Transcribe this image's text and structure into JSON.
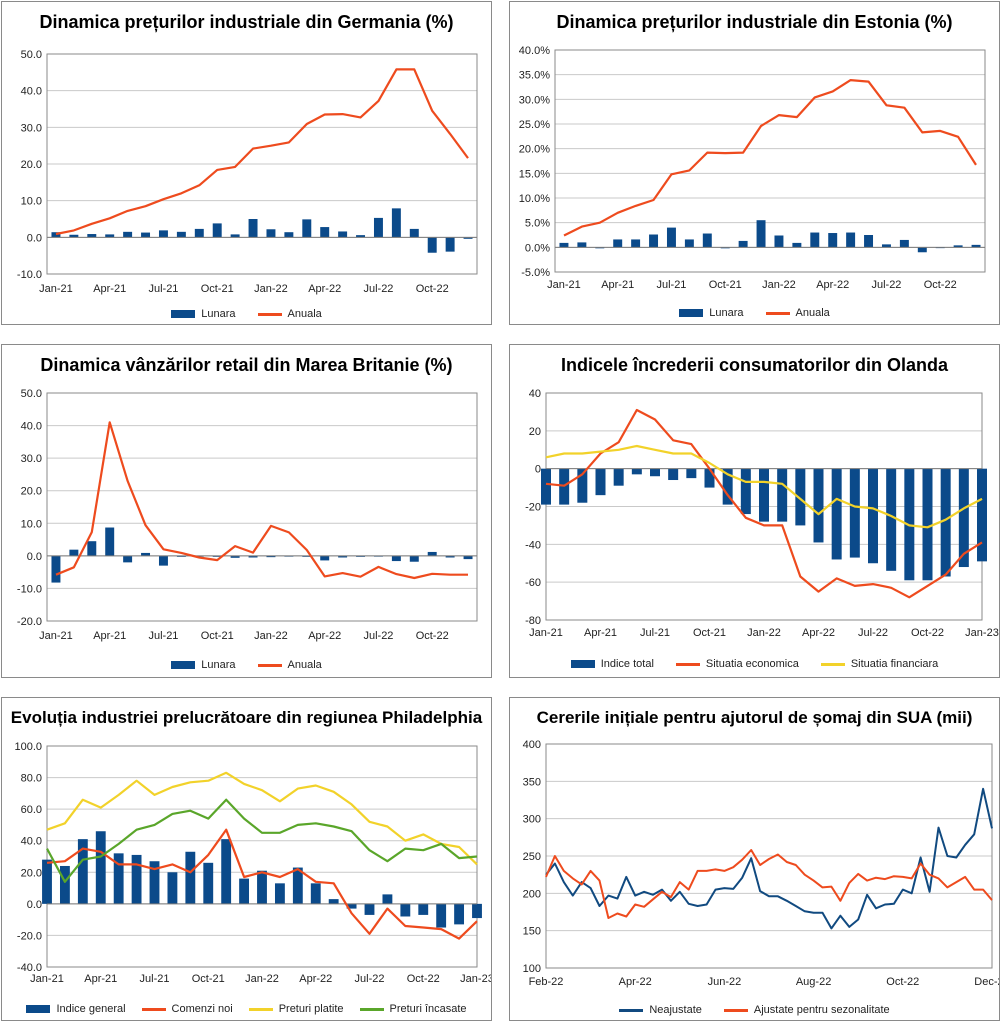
{
  "colors": {
    "bar": "#0b4a8a",
    "orange": "#ee4b1e",
    "yellow": "#f2d22a",
    "green": "#5aa62a",
    "navy": "#114a80",
    "grid": "#c9c9c9"
  },
  "chart_data": [
    {
      "id": "germany",
      "type": "bar+line",
      "title": "Dinamica prețurilor industriale din Germania (%)",
      "x": [
        "Jan-21",
        "Feb-21",
        "Mar-21",
        "Apr-21",
        "May-21",
        "Jun-21",
        "Jul-21",
        "Aug-21",
        "Sep-21",
        "Oct-21",
        "Nov-21",
        "Dec-21",
        "Jan-22",
        "Feb-22",
        "Mar-22",
        "Apr-22",
        "May-22",
        "Jun-22",
        "Jul-22",
        "Aug-22",
        "Sep-22",
        "Oct-22",
        "Nov-22",
        "Dec-22"
      ],
      "xtick_labels": [
        "Jan-21",
        "Apr-21",
        "Jul-21",
        "Oct-21",
        "Jan-22",
        "Apr-22",
        "Jul-22",
        "Oct-22"
      ],
      "ylim": [
        -10,
        50
      ],
      "yticks": [
        "-10.0",
        "0.0",
        "10.0",
        "20.0",
        "30.0",
        "40.0",
        "50.0"
      ],
      "series": [
        {
          "name": "Lunara",
          "kind": "bar",
          "values": [
            1.4,
            0.7,
            0.9,
            0.8,
            1.5,
            1.3,
            1.9,
            1.5,
            2.3,
            3.8,
            0.8,
            5.0,
            2.2,
            1.4,
            4.9,
            2.8,
            1.6,
            0.6,
            5.3,
            7.9,
            2.3,
            -4.2,
            -3.9,
            -0.4
          ]
        },
        {
          "name": "Anuala",
          "kind": "line",
          "values": [
            0.9,
            1.9,
            3.7,
            5.2,
            7.2,
            8.5,
            10.4,
            12.0,
            14.2,
            18.4,
            19.2,
            24.2,
            25.0,
            25.9,
            30.9,
            33.5,
            33.6,
            32.7,
            37.2,
            45.8,
            45.8,
            34.5,
            28.2,
            21.6
          ]
        }
      ]
    },
    {
      "id": "estonia",
      "type": "bar+line",
      "title": "Dinamica prețurilor industriale din Estonia (%)",
      "x": [
        "Jan-21",
        "Feb-21",
        "Mar-21",
        "Apr-21",
        "May-21",
        "Jun-21",
        "Jul-21",
        "Aug-21",
        "Sep-21",
        "Oct-21",
        "Nov-21",
        "Dec-21",
        "Jan-22",
        "Feb-22",
        "Mar-22",
        "Apr-22",
        "May-22",
        "Jun-22",
        "Jul-22",
        "Aug-22",
        "Sep-22",
        "Oct-22",
        "Nov-22",
        "Dec-22"
      ],
      "xtick_labels": [
        "Jan-21",
        "Apr-21",
        "Jul-21",
        "Oct-21",
        "Jan-22",
        "Apr-22",
        "Jul-22",
        "Oct-22"
      ],
      "ylim": [
        -5,
        40
      ],
      "yticks": [
        "-5.0%",
        "0.0%",
        "5.0%",
        "10.0%",
        "15.0%",
        "20.0%",
        "25.0%",
        "30.0%",
        "35.0%",
        "40.0%"
      ],
      "series": [
        {
          "name": "Lunara",
          "kind": "bar",
          "values": [
            0.9,
            1.0,
            -0.2,
            1.6,
            1.6,
            2.6,
            4.0,
            1.6,
            2.8,
            -0.2,
            1.3,
            5.5,
            2.4,
            0.9,
            3.0,
            2.9,
            3.0,
            2.5,
            0.6,
            1.5,
            -1.0,
            -0.1,
            0.4,
            0.5
          ]
        },
        {
          "name": "Anuala",
          "kind": "line",
          "values": [
            2.4,
            4.2,
            5.0,
            7.0,
            8.4,
            9.6,
            14.8,
            15.6,
            19.2,
            19.1,
            19.2,
            24.6,
            26.8,
            26.4,
            30.4,
            31.6,
            33.9,
            33.6,
            28.8,
            28.3,
            23.3,
            23.6,
            22.4,
            16.7
          ]
        }
      ]
    },
    {
      "id": "uk",
      "type": "bar+line",
      "title": "Dinamica vânzărilor retail din Marea Britanie (%)",
      "x": [
        "Jan-21",
        "Feb-21",
        "Mar-21",
        "Apr-21",
        "May-21",
        "Jun-21",
        "Jul-21",
        "Aug-21",
        "Sep-21",
        "Oct-21",
        "Nov-21",
        "Dec-21",
        "Jan-22",
        "Feb-22",
        "Mar-22",
        "Apr-22",
        "May-22",
        "Jun-22",
        "Jul-22",
        "Aug-22",
        "Sep-22",
        "Oct-22",
        "Nov-22",
        "Dec-22"
      ],
      "xtick_labels": [
        "Jan-21",
        "Apr-21",
        "Jul-21",
        "Oct-21",
        "Jan-22",
        "Apr-22",
        "Jul-22",
        "Oct-22"
      ],
      "ylim": [
        -20,
        50
      ],
      "yticks": [
        "-20.0",
        "-10.0",
        "0.0",
        "10.0",
        "20.0",
        "30.0",
        "40.0",
        "50.0"
      ],
      "series": [
        {
          "name": "Lunara",
          "kind": "bar",
          "values": [
            -8.2,
            1.9,
            4.5,
            8.7,
            -2.0,
            0.9,
            -3.0,
            -0.3,
            -0.2,
            -0.3,
            -0.6,
            -0.5,
            -0.4,
            -0.2,
            -0.3,
            -1.4,
            -0.5,
            -0.3,
            -0.1,
            -1.6,
            -1.8,
            1.2,
            -0.5,
            -1.0
          ]
        },
        {
          "name": "Anuala",
          "kind": "line",
          "values": [
            -5.8,
            -3.5,
            7.3,
            41.0,
            23.0,
            9.4,
            2.0,
            0.9,
            -0.5,
            -1.3,
            3.0,
            1.0,
            9.2,
            7.2,
            1.8,
            -6.3,
            -5.3,
            -6.4,
            -3.4,
            -5.6,
            -6.8,
            -5.5,
            -5.8,
            -5.8
          ]
        }
      ]
    },
    {
      "id": "netherlands",
      "type": "bar+line",
      "title": "Indicele încrederii consumatorilor din Olanda",
      "x": [
        "Jan-21",
        "Feb-21",
        "Mar-21",
        "Apr-21",
        "May-21",
        "Jun-21",
        "Jul-21",
        "Aug-21",
        "Sep-21",
        "Oct-21",
        "Nov-21",
        "Dec-21",
        "Jan-22",
        "Feb-22",
        "Mar-22",
        "Apr-22",
        "May-22",
        "Jun-22",
        "Jul-22",
        "Aug-22",
        "Sep-22",
        "Oct-22",
        "Nov-22",
        "Dec-22",
        "Jan-23"
      ],
      "xtick_labels": [
        "Jan-21",
        "Apr-21",
        "Jul-21",
        "Oct-21",
        "Jan-22",
        "Apr-22",
        "Jul-22",
        "Oct-22",
        "Jan-23"
      ],
      "ylim": [
        -80,
        40
      ],
      "yticks": [
        "-80",
        "-60",
        "-40",
        "-20",
        "0",
        "20",
        "40"
      ],
      "series": [
        {
          "name": "Indice total",
          "kind": "bar",
          "values": [
            -19,
            -19,
            -18,
            -14,
            -9,
            -3,
            -4,
            -6,
            -5,
            -10,
            -19,
            -24,
            -28,
            -28,
            -30,
            -39,
            -48,
            -47,
            -50,
            -54,
            -59,
            -59,
            -57,
            -52,
            -49
          ]
        },
        {
          "name": "Situatia economica",
          "kind": "line",
          "values": [
            -8,
            -9,
            -3,
            8,
            14,
            31,
            26,
            15,
            13,
            0,
            -14,
            -26,
            -30,
            -30,
            -57,
            -65,
            -58,
            -62,
            -61,
            -63,
            -68,
            -62,
            -56,
            -45,
            -39
          ]
        },
        {
          "name": "Situatia financiara",
          "kind": "line",
          "values": [
            6,
            8,
            8,
            9,
            10,
            12,
            10,
            8,
            8,
            3,
            -3,
            -7,
            -7,
            -8,
            -16,
            -24,
            -16,
            -20,
            -21,
            -25,
            -30,
            -31,
            -27,
            -21,
            -16
          ]
        }
      ]
    },
    {
      "id": "philadelphia",
      "type": "bar+line",
      "title": "Evoluția industriei prelucrătoare din regiunea Philadelphia",
      "x": [
        "Jan-21",
        "Feb-21",
        "Mar-21",
        "Apr-21",
        "May-21",
        "Jun-21",
        "Jul-21",
        "Aug-21",
        "Sep-21",
        "Oct-21",
        "Nov-21",
        "Dec-21",
        "Jan-22",
        "Feb-22",
        "Mar-22",
        "Apr-22",
        "May-22",
        "Jun-22",
        "Jul-22",
        "Aug-22",
        "Sep-22",
        "Oct-22",
        "Nov-22",
        "Dec-22",
        "Jan-23"
      ],
      "xtick_labels": [
        "Jan-21",
        "Apr-21",
        "Jul-21",
        "Oct-21",
        "Jan-22",
        "Apr-22",
        "Jul-22",
        "Oct-22",
        "Jan-23"
      ],
      "ylim": [
        -40,
        100
      ],
      "yticks": [
        "-40.0",
        "-20.0",
        "0.0",
        "20.0",
        "40.0",
        "60.0",
        "80.0",
        "100.0"
      ],
      "series": [
        {
          "name": "Indice general",
          "kind": "bar",
          "values": [
            28,
            24,
            41,
            46,
            32,
            31,
            27,
            20,
            33,
            26,
            41,
            16,
            21,
            13,
            23,
            13,
            3,
            -3,
            -7,
            6,
            -8,
            -7,
            -15,
            -13,
            -9
          ]
        },
        {
          "name": "Comenzi noi",
          "kind": "line",
          "values": [
            26,
            27,
            35,
            33,
            25,
            25,
            22,
            25,
            20,
            31,
            47,
            17,
            20,
            17,
            22,
            14,
            13,
            -6,
            -19,
            -3,
            -14,
            -15,
            -16,
            -22,
            -11
          ]
        },
        {
          "name": "Preturi platite",
          "kind": "line",
          "values": [
            47,
            51,
            66,
            61,
            69,
            78,
            69,
            74,
            77,
            78,
            83,
            76,
            72,
            65,
            73,
            75,
            71,
            63,
            52,
            49,
            40,
            44,
            38,
            36,
            25
          ]
        },
        {
          "name": "Preturi încasate",
          "kind": "line",
          "values": [
            35,
            14,
            28,
            30,
            38,
            47,
            50,
            57,
            59,
            54,
            66,
            54,
            45,
            45,
            50,
            51,
            49,
            46,
            34,
            27,
            35,
            34,
            38,
            29,
            30
          ]
        }
      ]
    },
    {
      "id": "usa",
      "type": "line",
      "title": "Cererile inițiale pentru ajutorul de șomaj din SUA (mii)",
      "xtick_labels": [
        "Feb-22",
        "Apr-22",
        "Jun-22",
        "Aug-22",
        "Oct-22",
        "Dec-22"
      ],
      "ylim": [
        100,
        400
      ],
      "yticks": [
        "100",
        "150",
        "200",
        "250",
        "300",
        "350",
        "400"
      ],
      "series": [
        {
          "name": "Neajustate",
          "kind": "line",
          "values": [
            225,
            240,
            215,
            197,
            215,
            207,
            183,
            197,
            193,
            222,
            197,
            202,
            198,
            205,
            190,
            202,
            186,
            183,
            185,
            205,
            207,
            206,
            221,
            247,
            203,
            196,
            196,
            190,
            183,
            176,
            174,
            174,
            153,
            170,
            155,
            165,
            198,
            180,
            185,
            186,
            205,
            200,
            248,
            202,
            288,
            250,
            248,
            265,
            279,
            340,
            287
          ]
        },
        {
          "name": "Ajustate pentru sezonalitate",
          "kind": "line",
          "values": [
            222,
            250,
            230,
            220,
            212,
            230,
            217,
            167,
            173,
            169,
            185,
            182,
            192,
            202,
            195,
            215,
            205,
            230,
            230,
            232,
            230,
            235,
            245,
            258,
            238,
            246,
            252,
            242,
            238,
            225,
            217,
            208,
            209,
            190,
            214,
            226,
            217,
            221,
            219,
            223,
            222,
            220,
            240,
            225,
            220,
            208,
            215,
            222,
            205,
            205,
            191
          ]
        }
      ]
    }
  ],
  "legends": {
    "germany": [
      "Lunara",
      "Anuala"
    ],
    "estonia": [
      "Lunara",
      "Anuala"
    ],
    "uk": [
      "Lunara",
      "Anuala"
    ],
    "netherlands": [
      "Indice total",
      "Situatia economica",
      "Situatia financiara"
    ],
    "philadelphia": [
      "Indice general",
      "Comenzi noi",
      "Preturi platite",
      "Preturi încasate"
    ],
    "usa": [
      "Neajustate",
      "Ajustate pentru sezonalitate"
    ]
  }
}
